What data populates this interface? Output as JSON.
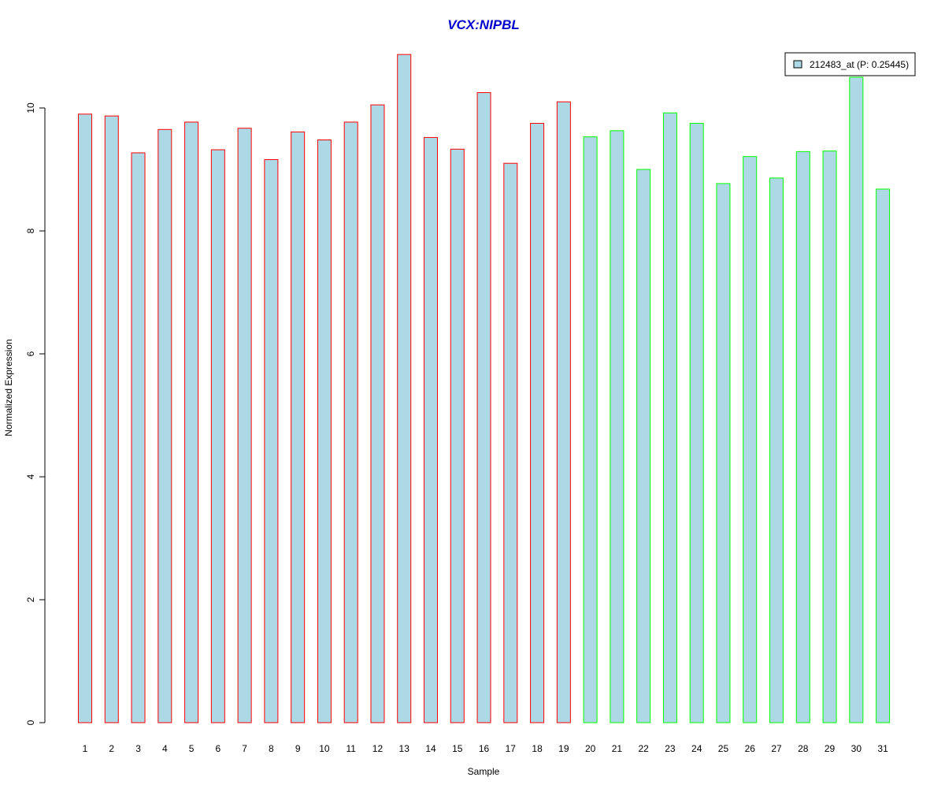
{
  "chart_data": {
    "type": "bar",
    "title": "VCX:NIPBL",
    "xlabel": "Sample",
    "ylabel": "Normalized Expression",
    "ylim": [
      0,
      11
    ],
    "yticks": [
      0,
      2,
      4,
      6,
      8,
      10
    ],
    "grid": false,
    "legend_position": "top-right",
    "categories": [
      "1",
      "2",
      "3",
      "4",
      "5",
      "6",
      "7",
      "8",
      "9",
      "10",
      "11",
      "12",
      "13",
      "14",
      "15",
      "16",
      "17",
      "18",
      "19",
      "20",
      "21",
      "22",
      "23",
      "24",
      "25",
      "26",
      "27",
      "28",
      "29",
      "30",
      "31"
    ],
    "series": [
      {
        "name": "212483_at (P: 0.25445)",
        "values": [
          9.9,
          9.87,
          9.27,
          9.65,
          9.77,
          9.32,
          9.67,
          9.16,
          9.61,
          9.48,
          9.77,
          10.05,
          10.87,
          9.52,
          9.33,
          10.25,
          9.1,
          9.75,
          10.1,
          9.53,
          9.63,
          9.0,
          9.92,
          9.75,
          8.77,
          9.21,
          8.86,
          9.29,
          9.3,
          10.5,
          8.68
        ]
      }
    ],
    "groups": [
      {
        "samples": [
          1,
          19
        ],
        "outline_color": "#ff0000"
      },
      {
        "samples": [
          20,
          31
        ],
        "outline_color": "#00ff00"
      }
    ],
    "colors": {
      "bar_fill": "#add8e6",
      "title": "#0000cd",
      "axis": "#000000"
    }
  }
}
